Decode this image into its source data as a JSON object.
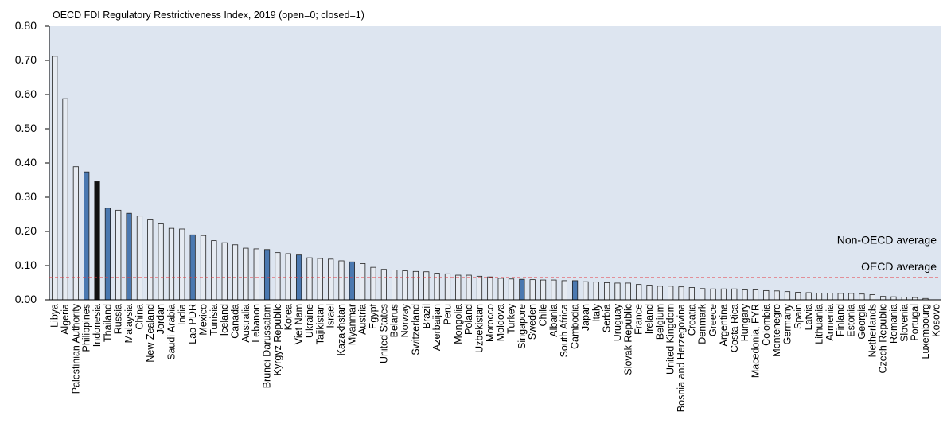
{
  "chart_data": {
    "type": "bar",
    "title": "OECD FDI Regulatory Restrictiveness Index, 2019 (open=0; closed=1)",
    "categories": [
      "Libya",
      "Algeria",
      "Palestinian Authority",
      "Philippines",
      "Indonesia",
      "Thailand",
      "Russia",
      "Malaysia",
      "China",
      "New Zealand",
      "Jordan",
      "Saudi Arabia",
      "India",
      "Lao PDR",
      "Mexico",
      "Tunisia",
      "Iceland",
      "Canada",
      "Australia",
      "Lebanon",
      "Brunei Darussalam",
      "Kyrgyz Republic",
      "Korea",
      "Viet Nam",
      "Ukraine",
      "Tajikistan",
      "Israel",
      "Kazakhstan",
      "Myanmar",
      "Austria",
      "Egypt",
      "United States",
      "Belarus",
      "Norway",
      "Switzerland",
      "Brazil",
      "Azerbaijan",
      "Peru",
      "Mongolia",
      "Poland",
      "Uzbekistan",
      "Morocco",
      "Moldova",
      "Turkey",
      "Singapore",
      "Sweden",
      "Chile",
      "Albania",
      "South Africa",
      "Cambodia",
      "Japan",
      "Italy",
      "Serbia",
      "Uruguay",
      "Slovak Republic",
      "France",
      "Ireland",
      "Belgium",
      "United Kingdom",
      "Bosnia and Herzegovina",
      "Croatia",
      "Denmark",
      "Greece",
      "Argentina",
      "Costa Rica",
      "Hungary",
      "Macedonia, FYR",
      "Colombia",
      "Montenegro",
      "Germany",
      "Spain",
      "Latvia",
      "Lithuania",
      "Armenia",
      "Finland",
      "Estonia",
      "Georgia",
      "Netherlands",
      "Czech Republic",
      "Romania",
      "Slovenia",
      "Portugal",
      "Luxembourg",
      "Kosovo"
    ],
    "values": [
      0.712,
      0.588,
      0.389,
      0.374,
      0.346,
      0.268,
      0.262,
      0.253,
      0.245,
      0.236,
      0.222,
      0.209,
      0.207,
      0.19,
      0.188,
      0.173,
      0.167,
      0.161,
      0.151,
      0.149,
      0.147,
      0.138,
      0.135,
      0.131,
      0.123,
      0.121,
      0.119,
      0.114,
      0.111,
      0.106,
      0.095,
      0.089,
      0.087,
      0.085,
      0.083,
      0.082,
      0.078,
      0.076,
      0.072,
      0.072,
      0.069,
      0.067,
      0.063,
      0.061,
      0.06,
      0.059,
      0.058,
      0.058,
      0.056,
      0.056,
      0.053,
      0.052,
      0.05,
      0.049,
      0.049,
      0.045,
      0.043,
      0.04,
      0.04,
      0.038,
      0.036,
      0.033,
      0.032,
      0.032,
      0.032,
      0.029,
      0.029,
      0.027,
      0.026,
      0.024,
      0.022,
      0.021,
      0.02,
      0.02,
      0.019,
      0.019,
      0.017,
      0.015,
      0.01,
      0.009,
      0.008,
      0.007,
      0.004,
      0.0
    ],
    "colors": [
      "#e6ebf2",
      "#e6ebf2",
      "#e6ebf2",
      "#4a78b0",
      "#111111",
      "#4a78b0",
      "#e6ebf2",
      "#4a78b0",
      "#e6ebf2",
      "#e6ebf2",
      "#e6ebf2",
      "#e6ebf2",
      "#e6ebf2",
      "#4a78b0",
      "#e6ebf2",
      "#e6ebf2",
      "#e6ebf2",
      "#e6ebf2",
      "#e6ebf2",
      "#e6ebf2",
      "#4a78b0",
      "#e6ebf2",
      "#e6ebf2",
      "#4a78b0",
      "#e6ebf2",
      "#e6ebf2",
      "#e6ebf2",
      "#e6ebf2",
      "#4a78b0",
      "#e6ebf2",
      "#e6ebf2",
      "#e6ebf2",
      "#e6ebf2",
      "#e6ebf2",
      "#e6ebf2",
      "#e6ebf2",
      "#e6ebf2",
      "#e6ebf2",
      "#e6ebf2",
      "#e6ebf2",
      "#e6ebf2",
      "#e6ebf2",
      "#e6ebf2",
      "#e6ebf2",
      "#4a78b0",
      "#e6ebf2",
      "#e6ebf2",
      "#e6ebf2",
      "#e6ebf2",
      "#4a78b0",
      "#e6ebf2",
      "#e6ebf2",
      "#e6ebf2",
      "#e6ebf2",
      "#e6ebf2",
      "#e6ebf2",
      "#e6ebf2",
      "#e6ebf2",
      "#e6ebf2",
      "#e6ebf2",
      "#e6ebf2",
      "#e6ebf2",
      "#e6ebf2",
      "#e6ebf2",
      "#e6ebf2",
      "#e6ebf2",
      "#e6ebf2",
      "#e6ebf2",
      "#e6ebf2",
      "#e6ebf2",
      "#e6ebf2",
      "#e6ebf2",
      "#e6ebf2",
      "#e6ebf2",
      "#e6ebf2",
      "#e6ebf2",
      "#e6ebf2",
      "#e6ebf2",
      "#e6ebf2",
      "#e6ebf2",
      "#e6ebf2",
      "#e6ebf2",
      "#e6ebf2",
      "#e6ebf2"
    ],
    "ylim": [
      0,
      0.8
    ],
    "yticks": [
      {
        "value": 0,
        "label": "0.00"
      },
      {
        "value": 0.1,
        "label": "0.10"
      },
      {
        "value": 0.2,
        "label": "0.20"
      },
      {
        "value": 0.3,
        "label": "0.30"
      },
      {
        "value": 0.4,
        "label": "0.40"
      },
      {
        "value": 0.5,
        "label": "0.50"
      },
      {
        "value": 0.6,
        "label": "0.60"
      },
      {
        "value": 0.7,
        "label": "0.70"
      },
      {
        "value": 0.8,
        "label": "0.80"
      }
    ],
    "reference_lines": [
      {
        "label": "Non-OECD average",
        "value": 0.143,
        "color": "#e8393f"
      },
      {
        "label": "OECD average",
        "value": 0.065,
        "color": "#e8393f"
      }
    ],
    "grid": false
  }
}
